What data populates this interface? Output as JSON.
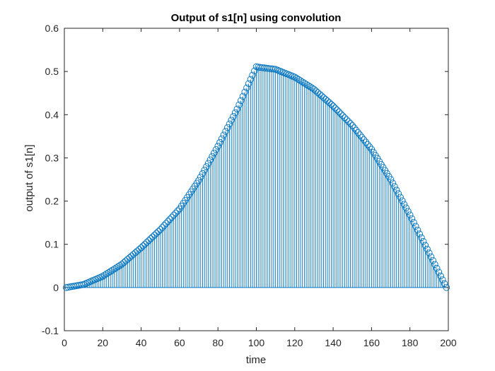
{
  "chart_data": {
    "type": "stem",
    "title": "Output of s1[n] using convolution",
    "xlabel": "time",
    "ylabel": "output of s1[n]",
    "xlim": [
      0,
      200
    ],
    "ylim": [
      -0.1,
      0.6
    ],
    "xticks": [
      "0",
      "20",
      "40",
      "60",
      "80",
      "100",
      "120",
      "140",
      "160",
      "180",
      "200"
    ],
    "yticks": [
      "-0.1",
      "0",
      "0.1",
      "0.2",
      "0.3",
      "0.4",
      "0.5",
      "0.6"
    ],
    "grid": false,
    "legend": "none",
    "series": [
      {
        "color": "#0072BD",
        "marker": "circle",
        "x": [
          1,
          10,
          20,
          30,
          40,
          50,
          60,
          70,
          80,
          90,
          100,
          101,
          110,
          120,
          130,
          140,
          150,
          160,
          170,
          180,
          190,
          199
        ],
        "y": [
          0.0,
          0.007,
          0.026,
          0.054,
          0.092,
          0.134,
          0.182,
          0.248,
          0.327,
          0.413,
          0.511,
          0.51,
          0.505,
          0.487,
          0.459,
          0.42,
          0.375,
          0.32,
          0.25,
          0.168,
          0.08,
          0.0
        ]
      }
    ]
  }
}
